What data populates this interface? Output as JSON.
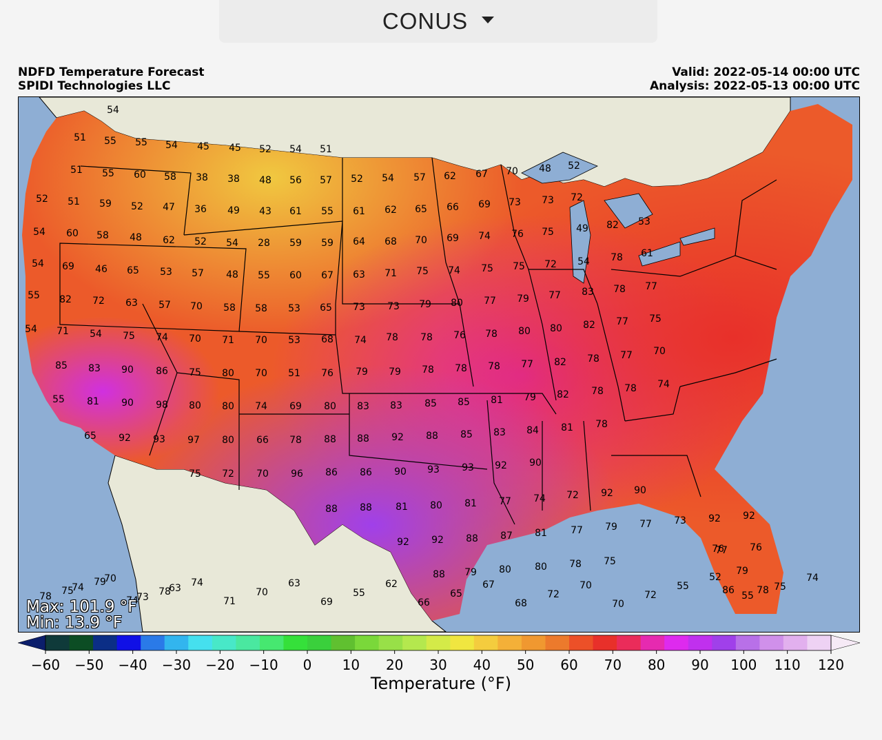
{
  "region_selector": {
    "label": "CONUS",
    "icon": "caret-down-icon"
  },
  "header": {
    "title_line1": "NDFD Temperature Forecast",
    "title_line2": "SPIDI Technologies LLC",
    "valid": "Valid: 2022-05-14 00:00 UTC",
    "analysis": "Analysis: 2022-05-13 00:00 UTC"
  },
  "stats": {
    "max": "Max: 101.9 °F",
    "min": "Min: 13.9 °F"
  },
  "colorbar": {
    "label": "Temperature (°F)",
    "min": -65,
    "max": 125,
    "step": 5,
    "tick_labels": [
      "−60",
      "−50",
      "−40",
      "−30",
      "−20",
      "−10",
      "0",
      "10",
      "20",
      "30",
      "40",
      "50",
      "60",
      "70",
      "80",
      "90",
      "100",
      "110",
      "120"
    ],
    "tick_values": [
      -60,
      -50,
      -40,
      -30,
      -20,
      -10,
      0,
      10,
      20,
      30,
      40,
      50,
      60,
      70,
      80,
      90,
      100,
      110,
      120
    ],
    "colors": [
      "#0b1e6b",
      "#0f3a3a",
      "#0c4d24",
      "#0b2e86",
      "#1010e6",
      "#2a7ae8",
      "#32b5ee",
      "#45e0ee",
      "#48e8c8",
      "#4ae8a0",
      "#46e870",
      "#35e03a",
      "#3ad03c",
      "#60c030",
      "#7ad83a",
      "#98e048",
      "#b4e84e",
      "#d4ea48",
      "#f0e640",
      "#f4cc3e",
      "#f4b038",
      "#f09830",
      "#ec7a2c",
      "#ec5028",
      "#e8302a",
      "#ea2c5a",
      "#e62ab0",
      "#de2aee",
      "#c030ee",
      "#a040ea",
      "#b870e8",
      "#d090ea",
      "#e2b0ee",
      "#eed2f4",
      "#f6eaf6"
    ]
  },
  "map": {
    "land_color": "#e8e8d8",
    "water_color": "#8eaed4",
    "values": [
      "54",
      "51",
      "55",
      "55",
      "54",
      "45",
      "45",
      "52",
      "54",
      "51",
      "51",
      "55",
      "60",
      "58",
      "38",
      "38",
      "48",
      "56",
      "57",
      "52",
      "54",
      "57",
      "62",
      "67",
      "70",
      "48",
      "52",
      "52",
      "51",
      "59",
      "52",
      "47",
      "36",
      "49",
      "43",
      "61",
      "55",
      "61",
      "62",
      "65",
      "66",
      "69",
      "73",
      "73",
      "72",
      "54",
      "60",
      "58",
      "48",
      "62",
      "52",
      "54",
      "28",
      "59",
      "59",
      "64",
      "68",
      "70",
      "69",
      "74",
      "76",
      "75",
      "49",
      "82",
      "53",
      "54",
      "69",
      "46",
      "65",
      "53",
      "57",
      "48",
      "55",
      "60",
      "67",
      "63",
      "71",
      "75",
      "74",
      "75",
      "75",
      "72",
      "54",
      "78",
      "61",
      "55",
      "82",
      "72",
      "63",
      "57",
      "70",
      "58",
      "58",
      "53",
      "65",
      "73",
      "73",
      "79",
      "80",
      "77",
      "79",
      "77",
      "83",
      "78",
      "77",
      "54",
      "71",
      "54",
      "75",
      "74",
      "70",
      "71",
      "70",
      "53",
      "68",
      "74",
      "78",
      "78",
      "76",
      "78",
      "80",
      "80",
      "82",
      "77",
      "75",
      "85",
      "83",
      "90",
      "86",
      "75",
      "80",
      "70",
      "51",
      "76",
      "79",
      "79",
      "78",
      "78",
      "78",
      "77",
      "82",
      "78",
      "77",
      "70",
      "55",
      "81",
      "90",
      "98",
      "80",
      "80",
      "74",
      "69",
      "80",
      "83",
      "83",
      "85",
      "85",
      "81",
      "79",
      "82",
      "78",
      "78",
      "74",
      "65",
      "92",
      "93",
      "97",
      "80",
      "66",
      "78",
      "88",
      "88",
      "92",
      "88",
      "85",
      "83",
      "84",
      "81",
      "78",
      "75",
      "72",
      "70",
      "96",
      "86",
      "86",
      "90",
      "93",
      "93",
      "92",
      "90",
      "88",
      "88",
      "81",
      "80",
      "81",
      "77",
      "74",
      "72",
      "92",
      "90",
      "92",
      "92",
      "88",
      "87",
      "81",
      "77",
      "79",
      "77",
      "73",
      "92",
      "92",
      "88",
      "79",
      "80",
      "80",
      "78",
      "75",
      "77",
      "76",
      "86",
      "79",
      "78",
      "76",
      "75",
      "79",
      "74",
      "78",
      "74",
      "71",
      "70",
      "63",
      "69",
      "55",
      "62",
      "66",
      "65",
      "67",
      "68",
      "72",
      "70",
      "70",
      "72",
      "55",
      "52",
      "55",
      "75",
      "74",
      "78",
      "74",
      "70",
      "73",
      "63"
    ]
  }
}
